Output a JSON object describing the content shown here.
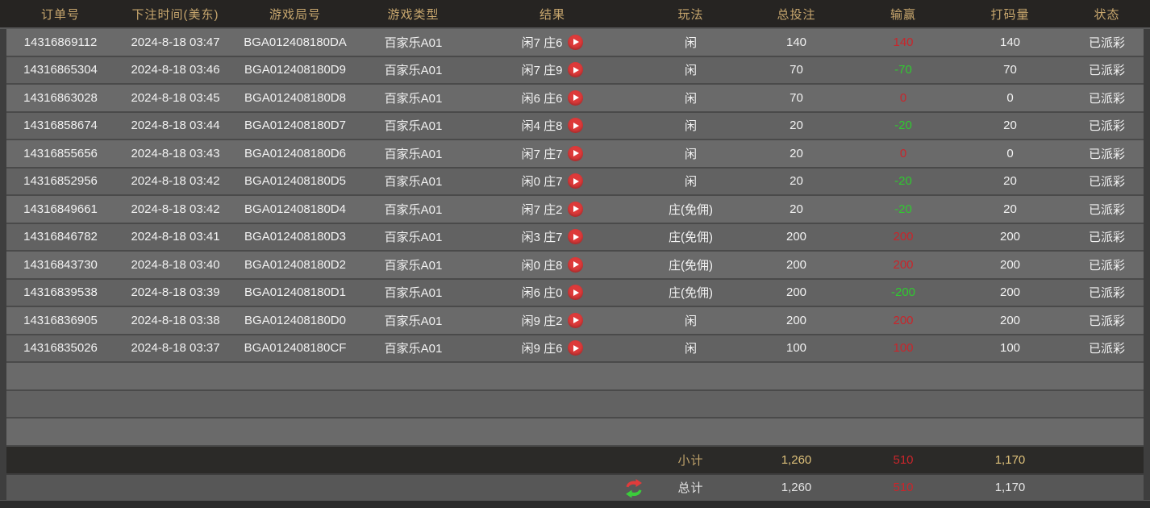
{
  "columns": [
    "订单号",
    "下注时间(美东)",
    "游戏局号",
    "游戏类型",
    "结果",
    "玩法",
    "总投注",
    "输赢",
    "打码量",
    "状态"
  ],
  "column_keys": [
    "order",
    "time",
    "round",
    "game-type",
    "result",
    "play",
    "total-bet",
    "winloss",
    "turnover",
    "status"
  ],
  "rows": [
    {
      "order": "14316869112",
      "time": "2024-8-18 03:47",
      "round": "BGA012408180DA",
      "game": "百家乐A01",
      "result": "闲7 庄6",
      "play": "闲",
      "bet": "140",
      "winloss": "140",
      "wl": "win",
      "turnover": "140",
      "status": "已派彩"
    },
    {
      "order": "14316865304",
      "time": "2024-8-18 03:46",
      "round": "BGA012408180D9",
      "game": "百家乐A01",
      "result": "闲7 庄9",
      "play": "闲",
      "bet": "70",
      "winloss": "-70",
      "wl": "loss",
      "turnover": "70",
      "status": "已派彩"
    },
    {
      "order": "14316863028",
      "time": "2024-8-18 03:45",
      "round": "BGA012408180D8",
      "game": "百家乐A01",
      "result": "闲6 庄6",
      "play": "闲",
      "bet": "70",
      "winloss": "0",
      "wl": "win",
      "turnover": "0",
      "status": "已派彩"
    },
    {
      "order": "14316858674",
      "time": "2024-8-18 03:44",
      "round": "BGA012408180D7",
      "game": "百家乐A01",
      "result": "闲4 庄8",
      "play": "闲",
      "bet": "20",
      "winloss": "-20",
      "wl": "loss",
      "turnover": "20",
      "status": "已派彩"
    },
    {
      "order": "14316855656",
      "time": "2024-8-18 03:43",
      "round": "BGA012408180D6",
      "game": "百家乐A01",
      "result": "闲7 庄7",
      "play": "闲",
      "bet": "20",
      "winloss": "0",
      "wl": "win",
      "turnover": "0",
      "status": "已派彩"
    },
    {
      "order": "14316852956",
      "time": "2024-8-18 03:42",
      "round": "BGA012408180D5",
      "game": "百家乐A01",
      "result": "闲0 庄7",
      "play": "闲",
      "bet": "20",
      "winloss": "-20",
      "wl": "loss",
      "turnover": "20",
      "status": "已派彩"
    },
    {
      "order": "14316849661",
      "time": "2024-8-18 03:42",
      "round": "BGA012408180D4",
      "game": "百家乐A01",
      "result": "闲7 庄2",
      "play": "庄(免佣)",
      "bet": "20",
      "winloss": "-20",
      "wl": "loss",
      "turnover": "20",
      "status": "已派彩"
    },
    {
      "order": "14316846782",
      "time": "2024-8-18 03:41",
      "round": "BGA012408180D3",
      "game": "百家乐A01",
      "result": "闲3 庄7",
      "play": "庄(免佣)",
      "bet": "200",
      "winloss": "200",
      "wl": "win",
      "turnover": "200",
      "status": "已派彩"
    },
    {
      "order": "14316843730",
      "time": "2024-8-18 03:40",
      "round": "BGA012408180D2",
      "game": "百家乐A01",
      "result": "闲0 庄8",
      "play": "庄(免佣)",
      "bet": "200",
      "winloss": "200",
      "wl": "win",
      "turnover": "200",
      "status": "已派彩"
    },
    {
      "order": "14316839538",
      "time": "2024-8-18 03:39",
      "round": "BGA012408180D1",
      "game": "百家乐A01",
      "result": "闲6 庄0",
      "play": "庄(免佣)",
      "bet": "200",
      "winloss": "-200",
      "wl": "loss",
      "turnover": "200",
      "status": "已派彩"
    },
    {
      "order": "14316836905",
      "time": "2024-8-18 03:38",
      "round": "BGA012408180D0",
      "game": "百家乐A01",
      "result": "闲9 庄2",
      "play": "闲",
      "bet": "200",
      "winloss": "200",
      "wl": "win",
      "turnover": "200",
      "status": "已派彩"
    },
    {
      "order": "14316835026",
      "time": "2024-8-18 03:37",
      "round": "BGA012408180CF",
      "game": "百家乐A01",
      "result": "闲9 庄6",
      "play": "闲",
      "bet": "100",
      "winloss": "100",
      "wl": "win",
      "turnover": "100",
      "status": "已派彩"
    }
  ],
  "empty_row_count": 3,
  "subtotal": {
    "label": "小计",
    "bet": "1,260",
    "winloss": "510",
    "turnover": "1,170"
  },
  "total": {
    "label": "总计",
    "bet": "1,260",
    "winloss": "510",
    "turnover": "1,170"
  },
  "icons": {
    "play": "play-icon",
    "refresh": "refresh-icon"
  },
  "colors": {
    "header_bg": "#262422",
    "header_text": "#c8a76e",
    "row_odd": "#6a6a6a",
    "row_even": "#626262",
    "row_text": "#f2f2f2",
    "win_red": "#c9252b",
    "loss_green": "#30c930",
    "subtotal_bg": "#2b2a28",
    "subtotal_gold": "#ddc07a",
    "total_bg": "#575757",
    "total_text": "#e6e6e6",
    "play_icon_red": "#dd3a3a"
  }
}
